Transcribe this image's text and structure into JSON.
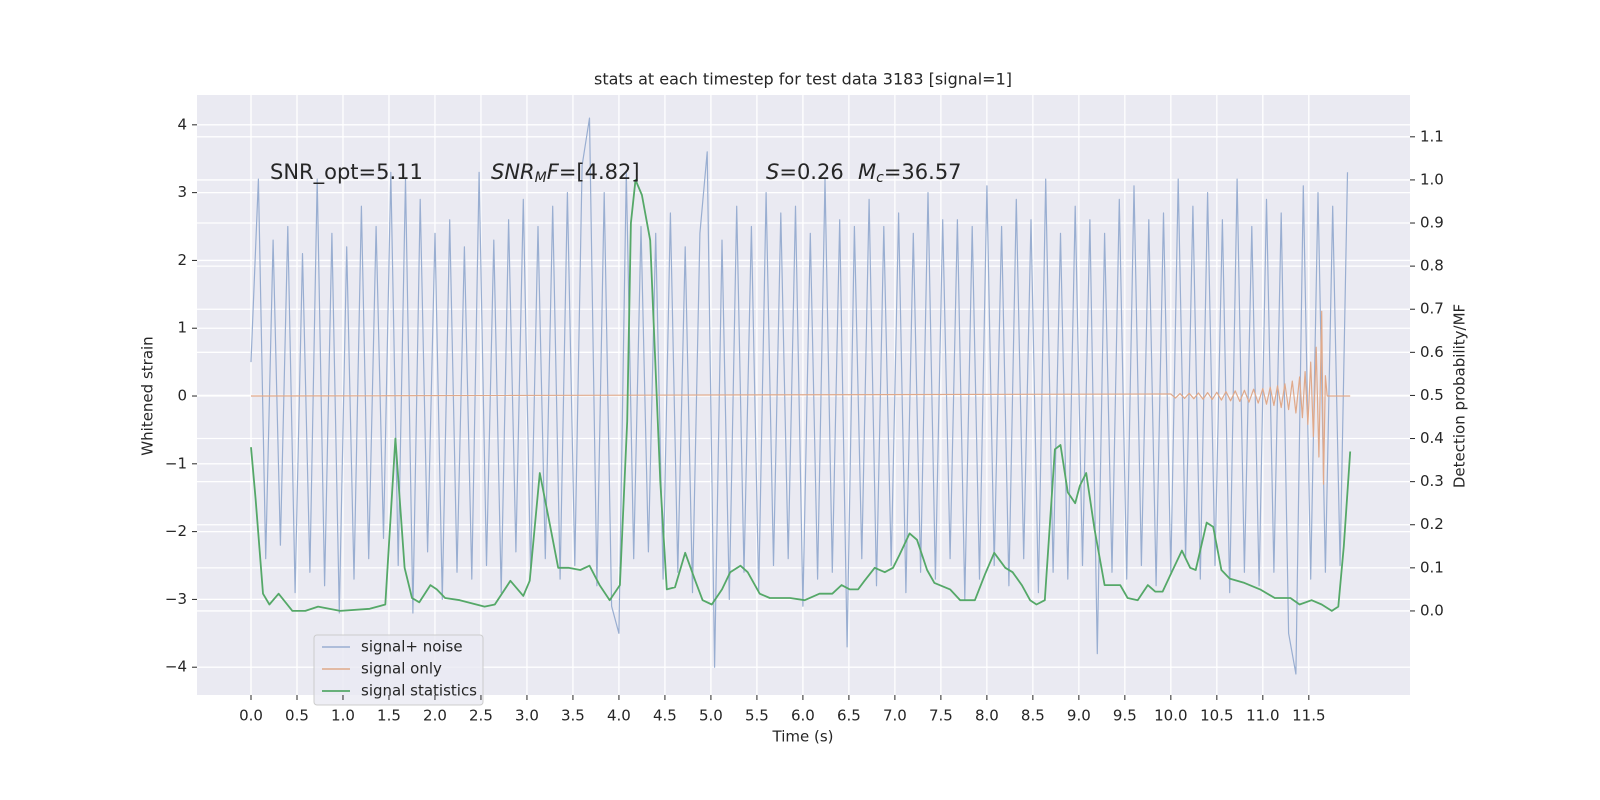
{
  "chart_data": {
    "type": "line",
    "title": "stats at each timestep for test data 3183 [signal=1]",
    "xlabel": "Time (s)",
    "ylabel": "Whitened strain",
    "y2label": "Detection probability/MF",
    "annotations": [
      [
        {
          "text": "SNR_opt=5.11"
        }
      ],
      [
        {
          "text": "SNR",
          "italic": true
        },
        {
          "text": "M",
          "italic": true,
          "sub": true
        },
        {
          "text": "F",
          "italic": true
        },
        {
          "text": "=[4.82]"
        }
      ],
      [
        {
          "text": "S",
          "italic": true
        },
        {
          "text": "=0.26"
        }
      ],
      [
        {
          "text": "M",
          "italic": true
        },
        {
          "text": "c",
          "italic": true,
          "sub": true
        },
        {
          "text": "=36.57"
        }
      ]
    ],
    "xlim": [
      -0.587,
      12.6
    ],
    "ylim": [
      -4.41,
      4.44
    ],
    "y2lim": [
      -0.195,
      1.197
    ],
    "xticks": [
      {
        "value": 0,
        "label": "0.0"
      },
      0.5,
      {
        "value": 1,
        "label": "1.0"
      },
      1.5,
      {
        "value": 2,
        "label": "2.0"
      },
      2.5,
      {
        "value": 3,
        "label": "3.0"
      },
      3.5,
      {
        "value": 4,
        "label": "4.0"
      },
      4.5,
      {
        "value": 5,
        "label": "5.0"
      },
      5.5,
      {
        "value": 6,
        "label": "6.0"
      },
      6.5,
      {
        "value": 7,
        "label": "7.0"
      },
      7.5,
      {
        "value": 8,
        "label": "8.0"
      },
      8.5,
      {
        "value": 9,
        "label": "9.0"
      },
      9.5,
      {
        "value": 10,
        "label": "10.0"
      },
      10.5,
      {
        "value": 11,
        "label": "11.0"
      },
      11.5
    ],
    "yticks": [
      {
        "value": -4,
        "label": "−4"
      },
      {
        "value": -3,
        "label": "−3"
      },
      {
        "value": -2,
        "label": "−2"
      },
      {
        "value": -1,
        "label": "−1"
      },
      0,
      1,
      2,
      3,
      4
    ],
    "y2ticks": [
      {
        "value": 0,
        "label": "0.0"
      },
      0.1,
      0.2,
      0.3,
      0.4,
      0.5,
      0.6,
      0.7,
      0.8,
      0.9,
      {
        "value": 1,
        "label": "1.0"
      },
      1.1
    ],
    "grid": true,
    "legend": "lower left",
    "series": [
      {
        "name": "signal+ noise",
        "color": "#99aed1",
        "x": [
          0,
          0.08,
          0.16,
          0.24,
          0.32,
          0.4,
          0.48,
          0.56,
          0.64,
          0.72,
          0.8,
          0.88,
          0.96,
          1.04,
          1.12,
          1.2,
          1.28,
          1.36,
          1.44,
          1.52,
          1.6,
          1.68,
          1.76,
          1.84,
          1.92,
          2,
          2.08,
          2.16,
          2.24,
          2.32,
          2.4,
          2.48,
          2.56,
          2.64,
          2.72,
          2.8,
          2.88,
          2.96,
          3.04,
          3.12,
          3.2,
          3.28,
          3.36,
          3.44,
          3.52,
          3.6,
          3.68,
          3.76,
          3.84,
          3.92,
          4,
          4.08,
          4.16,
          4.24,
          4.32,
          4.4,
          4.48,
          4.56,
          4.64,
          4.72,
          4.8,
          4.88,
          4.96,
          5.04,
          5.12,
          5.2,
          5.28,
          5.36,
          5.44,
          5.52,
          5.6,
          5.68,
          5.76,
          5.84,
          5.92,
          6,
          6.08,
          6.16,
          6.24,
          6.32,
          6.4,
          6.48,
          6.56,
          6.64,
          6.72,
          6.8,
          6.88,
          6.96,
          7.04,
          7.12,
          7.2,
          7.28,
          7.36,
          7.44,
          7.52,
          7.6,
          7.68,
          7.76,
          7.84,
          7.92,
          8,
          8.08,
          8.16,
          8.24,
          8.32,
          8.4,
          8.48,
          8.56,
          8.64,
          8.72,
          8.8,
          8.88,
          8.96,
          9.04,
          9.12,
          9.2,
          9.28,
          9.36,
          9.44,
          9.52,
          9.6,
          9.68,
          9.76,
          9.84,
          9.92,
          10,
          10.08,
          10.16,
          10.24,
          10.32,
          10.4,
          10.48,
          10.56,
          10.64,
          10.72,
          10.8,
          10.88,
          10.96,
          11.04,
          11.12,
          11.2,
          11.28,
          11.36,
          11.44,
          11.52,
          11.6,
          11.68,
          11.76,
          11.84,
          11.92
        ],
        "values": [
          0.5,
          3.2,
          -2.4,
          2.3,
          -2.2,
          2.5,
          -2.9,
          2.1,
          -2.6,
          3.2,
          -2.8,
          2.4,
          -3.2,
          2.2,
          -2.7,
          2.8,
          -2.4,
          2.5,
          -2.1,
          3.3,
          -2.5,
          3.2,
          -3.2,
          2.9,
          -2.3,
          2.4,
          -3.0,
          2.6,
          -2.6,
          2.2,
          -2.7,
          3.3,
          -2.5,
          2.3,
          -2.9,
          2.6,
          -2.3,
          2.9,
          -2.6,
          2.5,
          -2.4,
          2.8,
          -2.7,
          3.0,
          -2.5,
          3.4,
          4.1,
          -2.8,
          3.0,
          -3.1,
          -3.5,
          3.3,
          -2.4,
          2.5,
          -2.3,
          2.4,
          -2.7,
          2.7,
          -2.6,
          2.2,
          -2.9,
          2.4,
          3.6,
          -4.0,
          2.3,
          -3.0,
          2.8,
          -2.6,
          2.5,
          -2.9,
          3.0,
          -2.5,
          2.7,
          -2.4,
          2.8,
          -3.1,
          2.4,
          -2.7,
          3.2,
          -2.6,
          2.6,
          -3.7,
          2.5,
          -2.4,
          2.9,
          -2.8,
          2.5,
          -2.5,
          2.7,
          -2.9,
          2.4,
          -2.6,
          3.0,
          -2.7,
          2.6,
          -2.4,
          2.6,
          -3.0,
          2.5,
          -2.7,
          3.1,
          -2.5,
          2.5,
          -2.8,
          2.9,
          -2.4,
          2.6,
          -2.9,
          3.2,
          -2.6,
          2.4,
          -2.7,
          2.8,
          -2.5,
          2.6,
          -3.8,
          2.4,
          -2.6,
          2.9,
          -2.7,
          3.1,
          -2.5,
          2.6,
          -2.8,
          2.7,
          -2.6,
          3.2,
          -2.4,
          2.8,
          -2.7,
          3.0,
          -2.5,
          2.6,
          -2.9,
          3.2,
          -2.6,
          2.5,
          -2.8,
          2.9,
          -2.6,
          2.7,
          -3.5,
          -4.1,
          3.1,
          -2.7,
          3.0,
          -2.6,
          2.8,
          -2.5,
          3.3
        ]
      },
      {
        "name": "signal only",
        "color": "#e0a98a",
        "x": [
          0,
          10,
          10.05,
          10.1,
          10.15,
          10.2,
          10.25,
          10.3,
          10.35,
          10.4,
          10.45,
          10.5,
          10.55,
          10.6,
          10.65,
          10.7,
          10.75,
          10.8,
          10.85,
          10.9,
          10.95,
          11,
          11.04,
          11.08,
          11.12,
          11.16,
          11.2,
          11.24,
          11.28,
          11.32,
          11.36,
          11.4,
          11.43,
          11.46,
          11.49,
          11.52,
          11.55,
          11.58,
          11.61,
          11.64,
          11.66,
          11.68,
          11.7,
          11.95
        ],
        "values": [
          0,
          0.03,
          -0.03,
          0.035,
          -0.035,
          0.04,
          -0.04,
          0.045,
          -0.045,
          0.05,
          -0.05,
          0.055,
          -0.06,
          0.065,
          -0.07,
          0.075,
          -0.08,
          0.085,
          -0.09,
          0.1,
          -0.105,
          0.11,
          -0.12,
          0.13,
          -0.14,
          0.15,
          -0.17,
          0.18,
          -0.2,
          0.22,
          -0.25,
          0.28,
          -0.32,
          0.36,
          -0.42,
          0.5,
          -0.6,
          0.72,
          -0.9,
          1.25,
          -1.3,
          0.3,
          0,
          0
        ]
      },
      {
        "name": "signal statistics",
        "color": "#55a868",
        "axis": "y2",
        "x": [
          0,
          0.05,
          0.13,
          0.2,
          0.3,
          0.45,
          0.59,
          0.73,
          0.97,
          1.29,
          1.46,
          1.57,
          1.67,
          1.75,
          1.83,
          1.95,
          2.02,
          2.11,
          2.27,
          2.54,
          2.65,
          2.82,
          2.96,
          3.03,
          3.14,
          3.25,
          3.34,
          3.45,
          3.58,
          3.68,
          3.79,
          3.9,
          4.01,
          4.09,
          4.13,
          4.18,
          4.25,
          4.34,
          4.45,
          4.52,
          4.61,
          4.72,
          4.83,
          4.91,
          5.01,
          5.12,
          5.21,
          5.32,
          5.4,
          5.53,
          5.64,
          5.86,
          6.02,
          6.18,
          6.32,
          6.42,
          6.51,
          6.6,
          6.67,
          6.78,
          6.89,
          6.98,
          7.05,
          7.16,
          7.24,
          7.35,
          7.43,
          7.6,
          7.71,
          7.87,
          7.98,
          8.08,
          8.2,
          8.28,
          8.38,
          8.47,
          8.54,
          8.63,
          8.74,
          8.8,
          8.88,
          8.96,
          9.01,
          9.08,
          9.17,
          9.28,
          9.45,
          9.53,
          9.64,
          9.75,
          9.83,
          9.91,
          10.02,
          10.12,
          10.21,
          10.27,
          10.39,
          10.46,
          10.55,
          10.64,
          10.8,
          10.97,
          11.13,
          11.3,
          11.4,
          11.53,
          11.64,
          11.75,
          11.82,
          11.88,
          11.95
        ],
        "values": [
          0.38,
          0.26,
          0.04,
          0.015,
          0.04,
          0,
          0,
          0.01,
          0,
          0.005,
          0.015,
          0.4,
          0.1,
          0.03,
          0.02,
          0.06,
          0.05,
          0.03,
          0.025,
          0.01,
          0.015,
          0.07,
          0.035,
          0.07,
          0.32,
          0.2,
          0.1,
          0.1,
          0.095,
          0.105,
          0.06,
          0.025,
          0.06,
          0.44,
          0.9,
          1.0,
          0.965,
          0.86,
          0.3,
          0.05,
          0.055,
          0.135,
          0.07,
          0.025,
          0.015,
          0.05,
          0.09,
          0.105,
          0.09,
          0.04,
          0.03,
          0.03,
          0.025,
          0.04,
          0.04,
          0.06,
          0.05,
          0.05,
          0.07,
          0.1,
          0.09,
          0.1,
          0.13,
          0.18,
          0.165,
          0.095,
          0.065,
          0.05,
          0.025,
          0.025,
          0.085,
          0.135,
          0.1,
          0.09,
          0.06,
          0.025,
          0.015,
          0.025,
          0.375,
          0.385,
          0.275,
          0.25,
          0.29,
          0.32,
          0.19,
          0.06,
          0.06,
          0.03,
          0.025,
          0.06,
          0.045,
          0.045,
          0.095,
          0.14,
          0.1,
          0.095,
          0.205,
          0.195,
          0.095,
          0.075,
          0.065,
          0.05,
          0.03,
          0.03,
          0.015,
          0.025,
          0.015,
          0,
          0.01,
          0.15,
          0.37
        ]
      }
    ]
  }
}
